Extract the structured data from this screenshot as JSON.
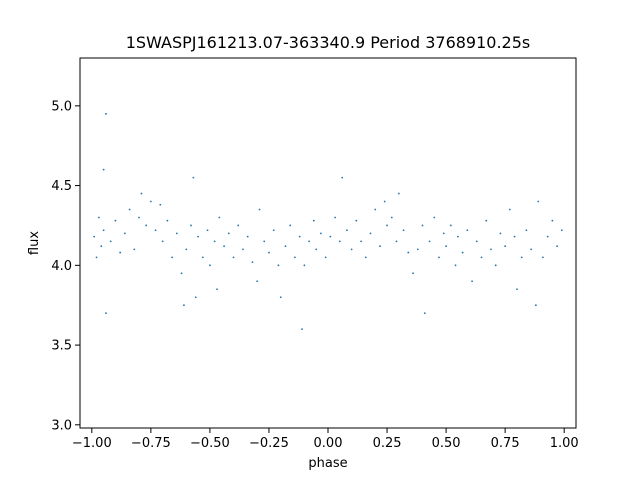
{
  "chart_data": {
    "type": "scatter",
    "title": "1SWASPJ161213.07-363340.9 Period 3768910.25s",
    "xlabel": "phase",
    "ylabel": "flux",
    "xlim": [
      -1.05,
      1.05
    ],
    "ylim": [
      2.98,
      5.3
    ],
    "x_ticks": [
      -1.0,
      -0.75,
      -0.5,
      -0.25,
      0.0,
      0.25,
      0.5,
      0.75,
      1.0
    ],
    "x_tick_labels": [
      "−1.00",
      "−0.75",
      "−0.50",
      "−0.25",
      "0.00",
      "0.25",
      "0.50",
      "0.75",
      "1.00"
    ],
    "y_ticks": [
      3.0,
      3.5,
      4.0,
      4.5,
      5.0
    ],
    "y_tick_labels": [
      "3.0",
      "3.5",
      "4.0",
      "4.5",
      "5.0"
    ],
    "grid": false,
    "legend": "none",
    "marker_color": "#1f77b4",
    "series": [
      {
        "values_note_free": true,
        "points": [
          [
            -0.99,
            4.18
          ],
          [
            -0.98,
            4.05
          ],
          [
            -0.97,
            4.3
          ],
          [
            -0.96,
            4.12
          ],
          [
            -0.95,
            4.22
          ],
          [
            -0.95,
            4.6
          ],
          [
            -0.94,
            3.7
          ],
          [
            -0.94,
            4.95
          ],
          [
            -0.92,
            4.15
          ],
          [
            -0.9,
            4.28
          ],
          [
            -0.88,
            4.08
          ],
          [
            -0.86,
            4.2
          ],
          [
            -0.84,
            4.35
          ],
          [
            -0.82,
            4.1
          ],
          [
            -0.8,
            4.3
          ],
          [
            -0.79,
            4.45
          ],
          [
            -0.77,
            4.25
          ],
          [
            -0.75,
            4.4
          ],
          [
            -0.73,
            4.22
          ],
          [
            -0.71,
            4.38
          ],
          [
            -0.7,
            4.15
          ],
          [
            -0.68,
            4.28
          ],
          [
            -0.66,
            4.05
          ],
          [
            -0.64,
            4.2
          ],
          [
            -0.62,
            3.95
          ],
          [
            -0.61,
            3.75
          ],
          [
            -0.6,
            4.1
          ],
          [
            -0.58,
            4.25
          ],
          [
            -0.57,
            4.55
          ],
          [
            -0.56,
            3.8
          ],
          [
            -0.55,
            4.18
          ],
          [
            -0.53,
            4.05
          ],
          [
            -0.51,
            4.22
          ],
          [
            -0.5,
            4.0
          ],
          [
            -0.48,
            4.15
          ],
          [
            -0.47,
            3.85
          ],
          [
            -0.46,
            4.3
          ],
          [
            -0.44,
            4.12
          ],
          [
            -0.42,
            4.2
          ],
          [
            -0.4,
            4.05
          ],
          [
            -0.38,
            4.25
          ],
          [
            -0.36,
            4.1
          ],
          [
            -0.34,
            4.18
          ],
          [
            -0.32,
            4.02
          ],
          [
            -0.3,
            3.9
          ],
          [
            -0.29,
            4.35
          ],
          [
            -0.27,
            4.15
          ],
          [
            -0.25,
            4.08
          ],
          [
            -0.23,
            4.22
          ],
          [
            -0.21,
            4.0
          ],
          [
            -0.2,
            3.8
          ],
          [
            -0.18,
            4.12
          ],
          [
            -0.16,
            4.25
          ],
          [
            -0.14,
            4.05
          ],
          [
            -0.12,
            4.18
          ],
          [
            -0.11,
            3.6
          ],
          [
            -0.1,
            4.0
          ],
          [
            -0.08,
            4.15
          ],
          [
            -0.06,
            4.28
          ],
          [
            -0.05,
            4.1
          ],
          [
            -0.03,
            4.2
          ],
          [
            -0.01,
            4.05
          ],
          [
            0.01,
            4.18
          ],
          [
            0.03,
            4.3
          ],
          [
            0.05,
            4.15
          ],
          [
            0.06,
            4.55
          ],
          [
            0.08,
            4.22
          ],
          [
            0.1,
            4.1
          ],
          [
            0.12,
            4.28
          ],
          [
            0.14,
            4.15
          ],
          [
            0.16,
            4.05
          ],
          [
            0.18,
            4.2
          ],
          [
            0.2,
            4.35
          ],
          [
            0.22,
            4.12
          ],
          [
            0.24,
            4.4
          ],
          [
            0.25,
            4.25
          ],
          [
            0.27,
            4.3
          ],
          [
            0.29,
            4.15
          ],
          [
            0.3,
            4.45
          ],
          [
            0.32,
            4.22
          ],
          [
            0.34,
            4.08
          ],
          [
            0.36,
            3.95
          ],
          [
            0.38,
            4.1
          ],
          [
            0.4,
            4.25
          ],
          [
            0.41,
            3.7
          ],
          [
            0.43,
            4.15
          ],
          [
            0.45,
            4.3
          ],
          [
            0.47,
            4.05
          ],
          [
            0.49,
            4.2
          ],
          [
            0.5,
            4.12
          ],
          [
            0.52,
            4.25
          ],
          [
            0.54,
            4.0
          ],
          [
            0.55,
            4.18
          ],
          [
            0.57,
            4.08
          ],
          [
            0.59,
            4.22
          ],
          [
            0.61,
            3.9
          ],
          [
            0.63,
            4.15
          ],
          [
            0.65,
            4.05
          ],
          [
            0.67,
            4.28
          ],
          [
            0.69,
            4.1
          ],
          [
            0.71,
            4.0
          ],
          [
            0.73,
            4.2
          ],
          [
            0.75,
            4.12
          ],
          [
            0.77,
            4.35
          ],
          [
            0.79,
            4.18
          ],
          [
            0.8,
            3.85
          ],
          [
            0.82,
            4.05
          ],
          [
            0.84,
            4.22
          ],
          [
            0.86,
            4.1
          ],
          [
            0.88,
            3.75
          ],
          [
            0.89,
            4.4
          ],
          [
            0.91,
            4.05
          ],
          [
            0.93,
            4.18
          ],
          [
            0.95,
            4.28
          ],
          [
            0.97,
            4.12
          ],
          [
            0.99,
            4.22
          ]
        ]
      }
    ]
  }
}
